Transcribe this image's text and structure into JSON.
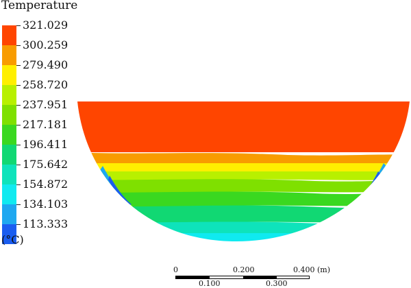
{
  "legend": {
    "title": "Temperature",
    "unit": "(°C)",
    "levels": [
      "321.029",
      "300.259",
      "279.490",
      "258.720",
      "237.951",
      "217.181",
      "196.411",
      "175.642",
      "154.872",
      "134.103",
      "113.333"
    ],
    "colors": [
      "#ff4500",
      "#f89c00",
      "#ffef00",
      "#b8f000",
      "#7fe000",
      "#3ad820",
      "#11d873",
      "#0ee3bb",
      "#10eaf0",
      "#1ea8f0",
      "#1a5df0"
    ]
  },
  "scale_bar": {
    "top_labels": [
      "0",
      "0.200",
      "0.400 (m)"
    ],
    "bottom_labels": [
      "0.100",
      "0.300"
    ]
  }
}
